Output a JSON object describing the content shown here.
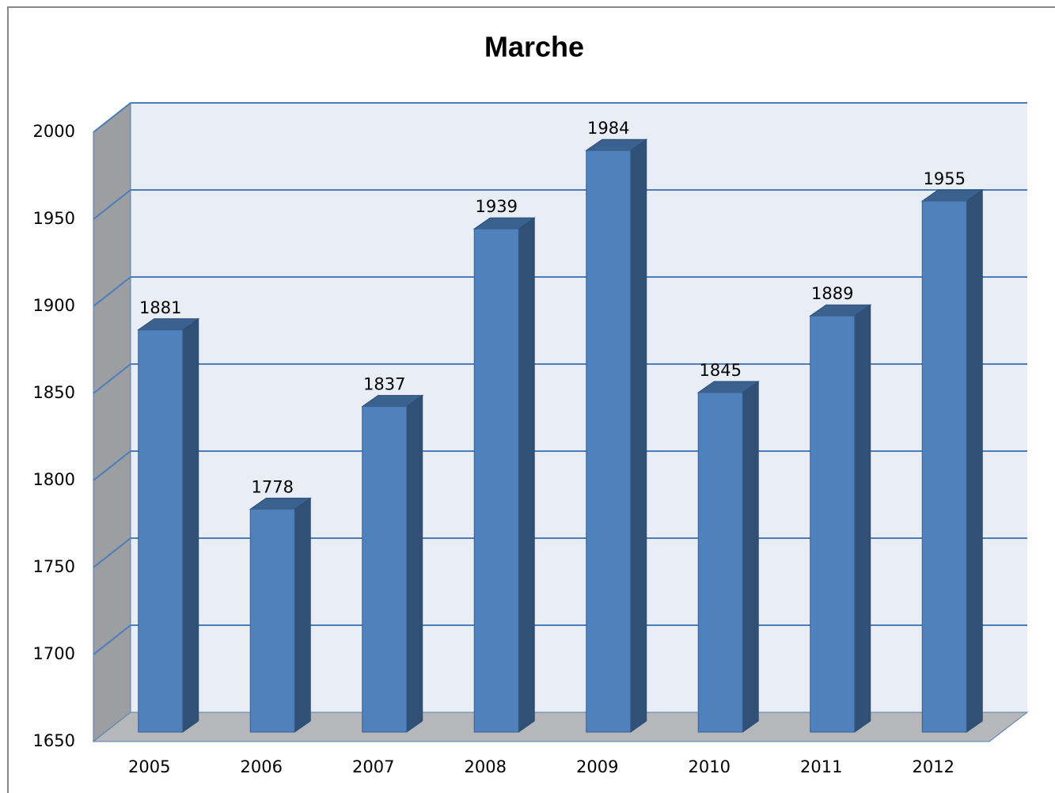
{
  "chart_data": {
    "type": "bar",
    "title": "Marche",
    "categories": [
      "2005",
      "2006",
      "2007",
      "2008",
      "2009",
      "2010",
      "2011",
      "2012"
    ],
    "values": [
      1881,
      1778,
      1837,
      1939,
      1984,
      1845,
      1889,
      1955
    ],
    "color": "#4f81bd",
    "ylim": [
      1650,
      2000
    ],
    "yticks": [
      1650,
      1700,
      1750,
      1800,
      1850,
      1900,
      1950,
      2000
    ],
    "grid": true
  }
}
